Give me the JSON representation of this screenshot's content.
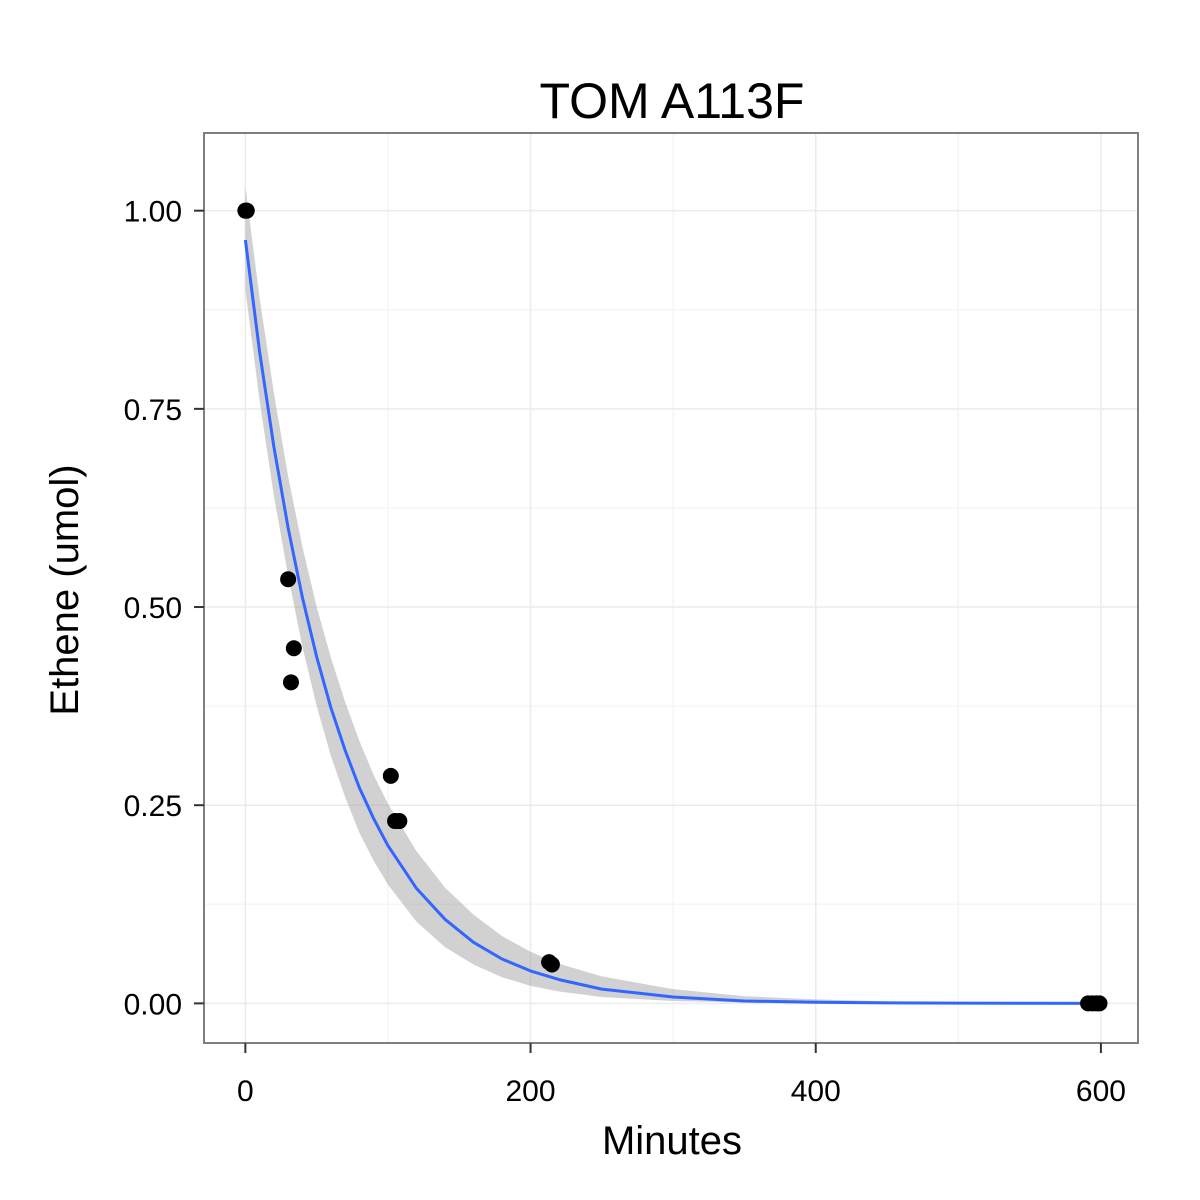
{
  "chart_data": {
    "type": "scatter",
    "title": "TOM A113F",
    "xlabel": "Minutes",
    "ylabel": "Ethene (umol)",
    "xlim": [
      -29,
      626
    ],
    "ylim": [
      -0.05,
      1.098
    ],
    "x_ticks": [
      0,
      200,
      400,
      600
    ],
    "x_tick_labels": [
      "0",
      "200",
      "400",
      "600"
    ],
    "y_ticks": [
      0,
      0.25,
      0.5,
      0.75,
      1.0
    ],
    "y_tick_labels": [
      "0.00",
      "0.25",
      "0.50",
      "0.75",
      "1.00"
    ],
    "grid": true,
    "legend": "none",
    "points": [
      {
        "x": 0,
        "y": 1.0
      },
      {
        "x": 1,
        "y": 1.0
      },
      {
        "x": 30,
        "y": 0.535
      },
      {
        "x": 32,
        "y": 0.405
      },
      {
        "x": 34,
        "y": 0.448
      },
      {
        "x": 102,
        "y": 0.287
      },
      {
        "x": 105,
        "y": 0.23
      },
      {
        "x": 108,
        "y": 0.23
      },
      {
        "x": 213,
        "y": 0.052
      },
      {
        "x": 215,
        "y": 0.049
      },
      {
        "x": 591,
        "y": 0.0
      },
      {
        "x": 594,
        "y": 0.0
      },
      {
        "x": 597,
        "y": 0.0
      },
      {
        "x": 599,
        "y": 0.0
      }
    ],
    "fit": {
      "model": "exponential decay",
      "x": [
        0,
        10,
        20,
        30,
        40,
        50,
        60,
        70,
        80,
        90,
        100,
        120,
        140,
        160,
        180,
        200,
        220,
        250,
        300,
        350,
        400,
        450,
        500,
        550,
        600
      ],
      "y": [
        0.963,
        0.822,
        0.702,
        0.6,
        0.512,
        0.437,
        0.373,
        0.319,
        0.272,
        0.233,
        0.199,
        0.145,
        0.106,
        0.077,
        0.056,
        0.041,
        0.03,
        0.018,
        0.008,
        0.003,
        0.0015,
        0.0006,
        0.0003,
        0.0001,
        0.0
      ],
      "ci_lower": [
        0.9,
        0.76,
        0.64,
        0.54,
        0.45,
        0.375,
        0.312,
        0.26,
        0.215,
        0.18,
        0.15,
        0.103,
        0.071,
        0.049,
        0.033,
        0.022,
        0.015,
        0.008,
        0.003,
        0.001,
        0.0004,
        0.0001,
        0.0,
        0.0,
        0.0
      ],
      "ci_upper": [
        1.03,
        0.89,
        0.77,
        0.665,
        0.576,
        0.5,
        0.436,
        0.38,
        0.331,
        0.288,
        0.252,
        0.192,
        0.146,
        0.112,
        0.085,
        0.065,
        0.05,
        0.034,
        0.018,
        0.009,
        0.005,
        0.0025,
        0.0012,
        0.0006,
        0.0003
      ],
      "line_color": "#3366FF",
      "band_color": "#999999"
    },
    "point_color": "#000000",
    "panel_border_color": "#7f7f7f",
    "grid_color": "#ebebeb"
  }
}
